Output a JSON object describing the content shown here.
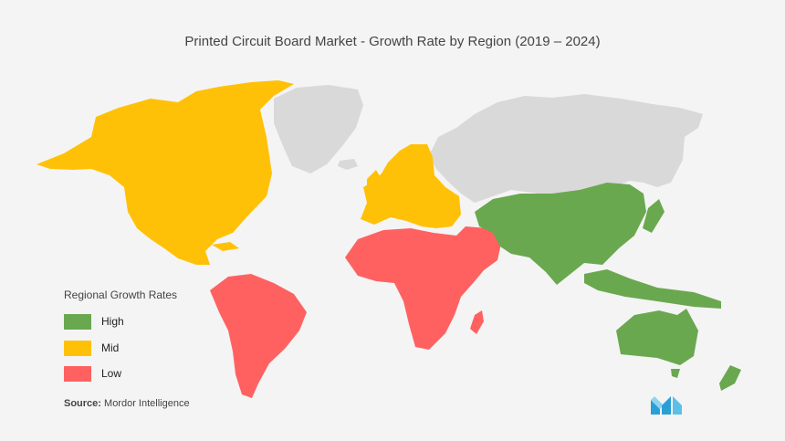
{
  "title": "Printed Circuit Board  Market  - Growth Rate by Region (2019 – 2024)",
  "legend": {
    "title": "Regional Growth Rates",
    "items": [
      {
        "label": "High",
        "color": "#6aa84f"
      },
      {
        "label": "Mid",
        "color": "#ffc107"
      },
      {
        "label": "Low",
        "color": "#ff6161"
      }
    ]
  },
  "source": {
    "prefix": "Source:",
    "text": "Mordor Intelligence"
  },
  "colors": {
    "high": "#6aa84f",
    "mid": "#ffc107",
    "low": "#ff6161",
    "nodata": "#d9d9d9"
  },
  "regions": [
    {
      "name": "North America",
      "rate": "Mid"
    },
    {
      "name": "Europe",
      "rate": "Mid"
    },
    {
      "name": "South America",
      "rate": "Low"
    },
    {
      "name": "Middle East and Africa",
      "rate": "Low"
    },
    {
      "name": "Asia-Pacific",
      "rate": "High"
    },
    {
      "name": "Greenland",
      "rate": "none"
    },
    {
      "name": "Russia",
      "rate": "none"
    }
  ],
  "logo": "mordor-intelligence-logo"
}
